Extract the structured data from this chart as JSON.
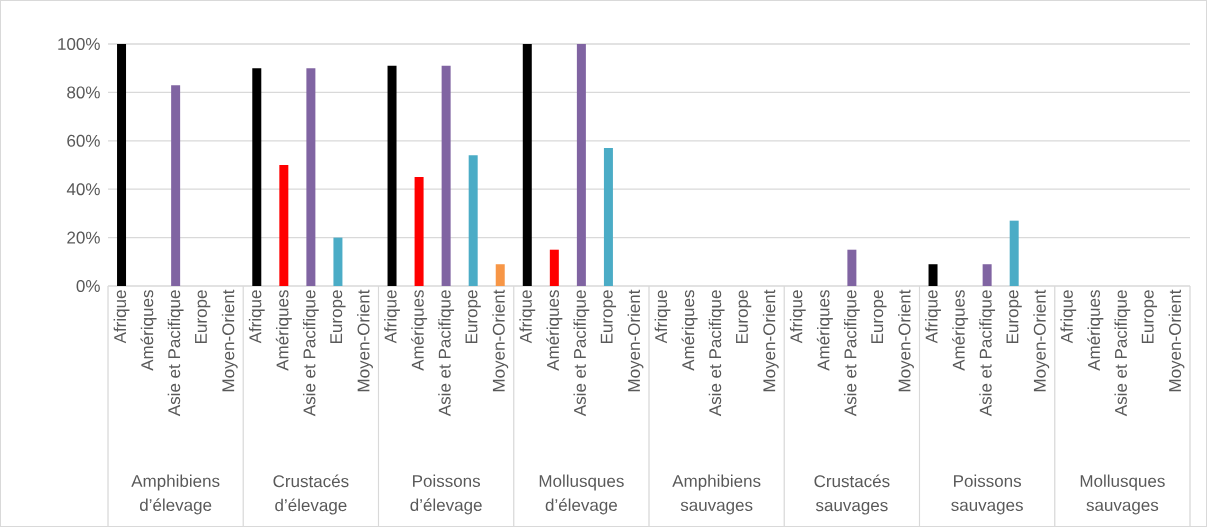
{
  "chart_data": {
    "type": "bar",
    "categories": [
      "Afrique",
      "Amériques",
      "Asie et Pacifique",
      "Europe",
      "Moyen-Orient",
      "Afrique",
      "Amériques",
      "Asie et Pacifique",
      "Europe",
      "Moyen-Orient",
      "Afrique",
      "Amériques",
      "Asie et Pacifique",
      "Europe",
      "Moyen-Orient",
      "Afrique",
      "Amériques",
      "Asie et Pacifique",
      "Europe",
      "Moyen-Orient",
      "Afrique",
      "Amériques",
      "Asie et Pacifique",
      "Europe",
      "Moyen-Orient",
      "Afrique",
      "Amériques",
      "Asie et Pacifique",
      "Europe",
      "Moyen-Orient",
      "Afrique",
      "Amériques",
      "Asie et Pacifique",
      "Europe",
      "Moyen-Orient",
      "Afrique",
      "Amériques",
      "Asie et Pacifique",
      "Europe",
      "Moyen-Orient"
    ],
    "values": [
      100,
      0,
      83,
      0,
      0,
      90,
      50,
      90,
      20,
      0,
      91,
      45,
      91,
      54,
      9,
      100,
      15,
      100,
      57,
      0,
      0,
      0,
      0,
      0,
      0,
      0,
      0,
      15,
      0,
      0,
      9,
      0,
      9,
      27,
      0,
      0,
      0,
      0,
      0,
      0
    ],
    "colors": [
      "#000000",
      "#ff0000",
      "#8064a2",
      "#4bacc6",
      "#f79646",
      "#000000",
      "#ff0000",
      "#8064a2",
      "#4bacc6",
      "#f79646",
      "#000000",
      "#ff0000",
      "#8064a2",
      "#4bacc6",
      "#f79646",
      "#000000",
      "#ff0000",
      "#8064a2",
      "#4bacc6",
      "#f79646",
      "#000000",
      "#ff0000",
      "#8064a2",
      "#4bacc6",
      "#f79646",
      "#000000",
      "#ff0000",
      "#8064a2",
      "#4bacc6",
      "#f79646",
      "#000000",
      "#ff0000",
      "#8064a2",
      "#4bacc6",
      "#f79646",
      "#000000",
      "#ff0000",
      "#8064a2",
      "#4bacc6",
      "#f79646"
    ],
    "ylim": [
      0,
      100
    ],
    "yticks": [
      {
        "value": 0,
        "label": "0%"
      },
      {
        "value": 20,
        "label": "20%"
      },
      {
        "value": 40,
        "label": "40%"
      },
      {
        "value": 60,
        "label": "60%"
      },
      {
        "value": 80,
        "label": "80%"
      },
      {
        "value": 100,
        "label": "100%"
      }
    ],
    "grid": "y",
    "annotations": [
      "Amphibiens d’élevage",
      "Crustacés d’élevage",
      "Poissons d’élevage",
      "Mollusques d’élevage",
      "Amphibiens sauvages",
      "Crustacés sauvages",
      "Poissons sauvages",
      "Mollusques sauvages"
    ]
  }
}
